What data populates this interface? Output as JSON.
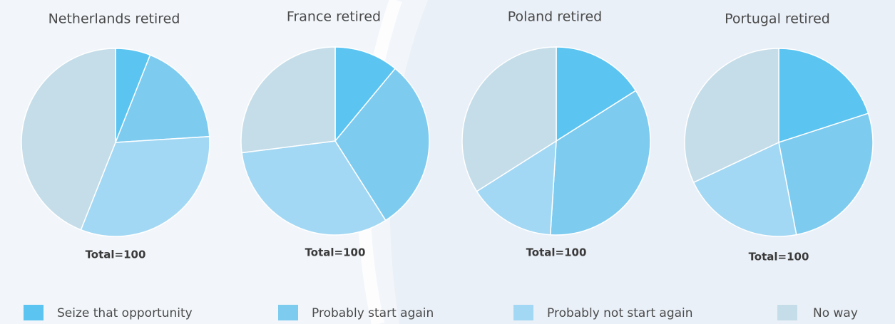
{
  "chart_data": [
    {
      "type": "pie",
      "title": "Netherlands retired",
      "note": "Total=100",
      "categories": [
        "Seize that opportunity",
        "Probably start again",
        "Probably not start again",
        "No way"
      ],
      "values": [
        6,
        18,
        32,
        44
      ],
      "colors": [
        "#5bc4f1",
        "#7ecbf0",
        "#a3d8f4",
        "#c5dde9"
      ]
    },
    {
      "type": "pie",
      "title": "France retired",
      "note": "Total=100",
      "categories": [
        "Seize that opportunity",
        "Probably start again",
        "Probably not start again",
        "No way"
      ],
      "values": [
        11,
        30,
        32,
        27
      ],
      "colors": [
        "#5bc4f1",
        "#7ecbf0",
        "#a3d8f4",
        "#c5dde9"
      ]
    },
    {
      "type": "pie",
      "title": "Poland retired",
      "note": "Total=100",
      "categories": [
        "Seize that opportunity",
        "Probably start again",
        "Probably not start again",
        "No way"
      ],
      "values": [
        16,
        35,
        15,
        34
      ],
      "colors": [
        "#5bc4f1",
        "#7ecbf0",
        "#a3d8f4",
        "#c5dde9"
      ]
    },
    {
      "type": "pie",
      "title": "Portugal retired",
      "note": "Total=100",
      "categories": [
        "Seize that opportunity",
        "Probably start again",
        "Probably not start again",
        "No way"
      ],
      "values": [
        20,
        27,
        21,
        32
      ],
      "colors": [
        "#5bc4f1",
        "#7ecbf0",
        "#a3d8f4",
        "#c5dde9"
      ]
    }
  ]
}
